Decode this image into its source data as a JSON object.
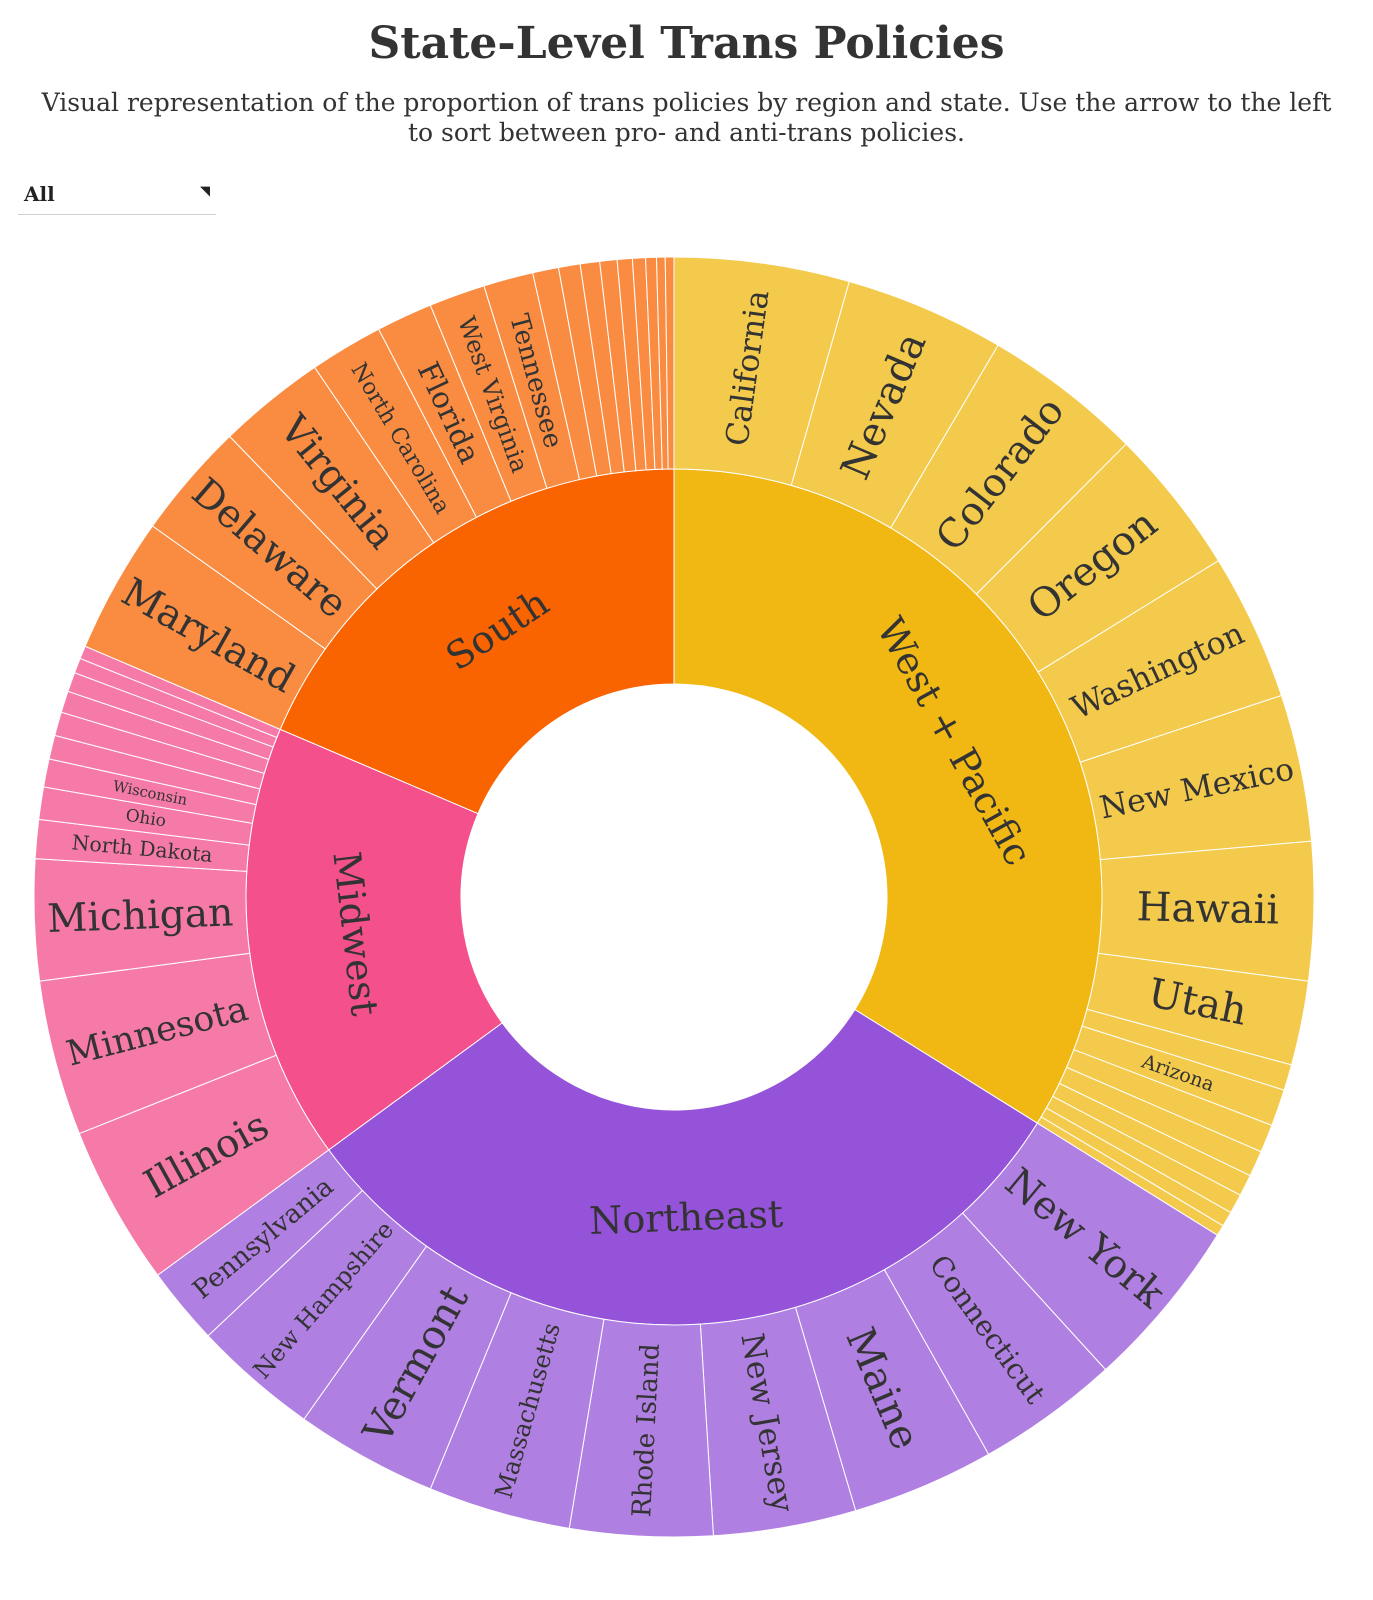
{
  "title": "State-Level Trans Policies",
  "subtitle": "Visual representation of the proportion of trans policies by region and state. Use the arrow to the left to sort between pro- and anti-trans policies.",
  "filter": {
    "selected": "All"
  },
  "chart_data": {
    "type": "sunburst",
    "regions": [
      {
        "name": "West + Pacific",
        "color": "#f1b814",
        "child_color": "#f3ca4b",
        "label_color": "#333333",
        "states": [
          {
            "name": "California",
            "value": 4.05
          },
          {
            "name": "Nevada",
            "value": 3.7
          },
          {
            "name": "Colorado",
            "value": 3.7
          },
          {
            "name": "Oregon",
            "value": 3.4
          },
          {
            "name": "Washington",
            "value": 3.4
          },
          {
            "name": "New Mexico",
            "value": 3.4
          },
          {
            "name": "Hawaii",
            "value": 3.2
          },
          {
            "name": "Utah",
            "value": 1.95
          },
          {
            "name": "",
            "value": 0.6
          },
          {
            "name": "Arizona",
            "value": 0.85
          },
          {
            "name": "",
            "value": 0.65
          },
          {
            "name": "",
            "value": 0.6
          },
          {
            "name": "",
            "value": 0.5
          },
          {
            "name": "",
            "value": 0.45
          },
          {
            "name": "",
            "value": 0.35
          },
          {
            "name": "",
            "value": 0.25
          }
        ]
      },
      {
        "name": "Northeast",
        "color": "#9553d9",
        "child_color": "#b07fe2",
        "label_color": "#ffffff",
        "states": [
          {
            "name": "New York",
            "value": 4.0
          },
          {
            "name": "Connecticut",
            "value": 3.3
          },
          {
            "name": "Maine",
            "value": 3.3
          },
          {
            "name": "New Jersey",
            "value": 3.3
          },
          {
            "name": "Rhode Island",
            "value": 3.3
          },
          {
            "name": "Massachusetts",
            "value": 3.3
          },
          {
            "name": "Vermont",
            "value": 3.3
          },
          {
            "name": "New Hampshire",
            "value": 2.9
          },
          {
            "name": "Pennsylvania",
            "value": 1.8
          }
        ]
      },
      {
        "name": "Midwest",
        "color": "#f4508c",
        "child_color": "#f67aa8",
        "label_color": "#333333",
        "states": [
          {
            "name": "Illinois",
            "value": 3.7
          },
          {
            "name": "Minnesota",
            "value": 3.6
          },
          {
            "name": "Michigan",
            "value": 2.8
          },
          {
            "name": "North Dakota",
            "value": 0.9
          },
          {
            "name": "Ohio",
            "value": 0.75
          },
          {
            "name": "Wisconsin",
            "value": 0.65
          },
          {
            "name": "",
            "value": 0.55
          },
          {
            "name": "",
            "value": 0.55
          },
          {
            "name": "",
            "value": 0.5
          },
          {
            "name": "",
            "value": 0.45
          },
          {
            "name": "",
            "value": 0.35
          },
          {
            "name": "",
            "value": 0.3
          }
        ]
      },
      {
        "name": "South",
        "color": "#f96400",
        "child_color": "#f98c41",
        "label_color": "#333333",
        "states": [
          {
            "name": "Maryland",
            "value": 3.15
          },
          {
            "name": "Delaware",
            "value": 2.7
          },
          {
            "name": "Virginia",
            "value": 2.5
          },
          {
            "name": "North Carolina",
            "value": 1.7
          },
          {
            "name": "Florida",
            "value": 1.3
          },
          {
            "name": "West Virginia",
            "value": 1.3
          },
          {
            "name": "Tennessee",
            "value": 1.15
          },
          {
            "name": "",
            "value": 0.6
          },
          {
            "name": "",
            "value": 0.5
          },
          {
            "name": "",
            "value": 0.45
          },
          {
            "name": "",
            "value": 0.4
          },
          {
            "name": "",
            "value": 0.35
          },
          {
            "name": "",
            "value": 0.3
          },
          {
            "name": "",
            "value": 0.25
          },
          {
            "name": "",
            "value": 0.2
          },
          {
            "name": "",
            "value": 0.2
          }
        ]
      }
    ]
  }
}
